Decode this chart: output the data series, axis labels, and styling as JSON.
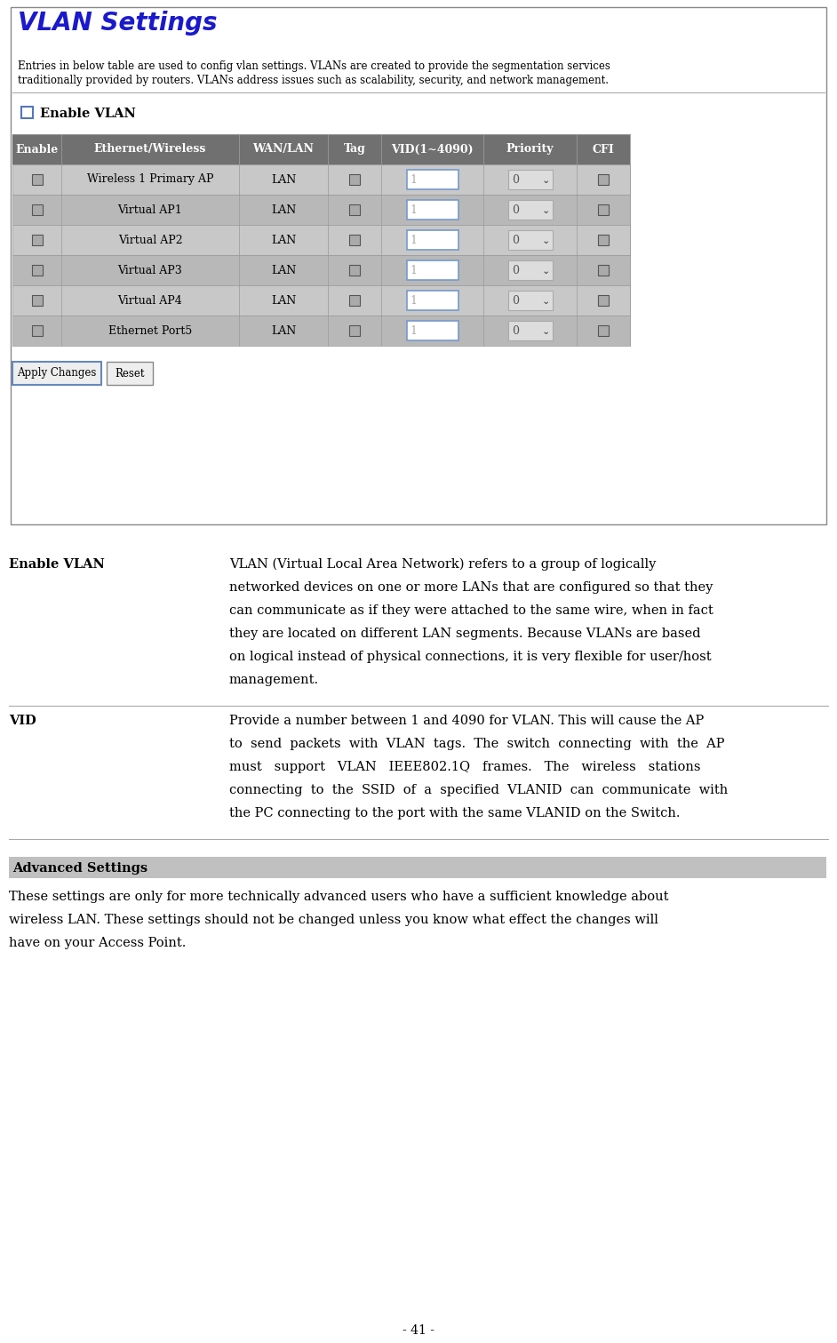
{
  "title": "VLAN Settings",
  "title_color": "#1a1acc",
  "title_fontsize": 20,
  "intro_text": "Entries in below table are used to config vlan settings. VLANs are created to provide the segmentation services traditionally provided by routers. VLANs address issues such as scalability, security, and network management.",
  "enable_vlan_label": "Enable VLAN",
  "table_headers": [
    "Enable",
    "Ethernet/Wireless",
    "WAN/LAN",
    "Tag",
    "VID(1~4090)",
    "Priority",
    "CFI"
  ],
  "table_rows": [
    [
      "",
      "Wireless 1 Primary AP",
      "LAN",
      "",
      "1",
      "0",
      ""
    ],
    [
      "",
      "Virtual AP1",
      "LAN",
      "",
      "1",
      "0",
      ""
    ],
    [
      "",
      "Virtual AP2",
      "LAN",
      "",
      "1",
      "0",
      ""
    ],
    [
      "",
      "Virtual AP3",
      "LAN",
      "",
      "1",
      "0",
      ""
    ],
    [
      "",
      "Virtual AP4",
      "LAN",
      "",
      "1",
      "0",
      ""
    ],
    [
      "",
      "Ethernet Port5",
      "LAN",
      "",
      "1",
      "0",
      ""
    ]
  ],
  "header_bg": "#707070",
  "row_bg_light": "#c8c8c8",
  "row_bg_dark": "#b8b8b8",
  "button1": "Apply Changes",
  "button2": "Reset",
  "term1": "Enable VLAN",
  "def1_lines": [
    "VLAN (Virtual Local Area Network) refers to a group of logically",
    "networked devices on one or more LANs that are configured so that they",
    "can communicate as if they were attached to the same wire, when in fact",
    "they are located on different LAN segments. Because VLANs are based",
    "on logical instead of physical connections, it is very flexible for user/host",
    "management."
  ],
  "term2": "VID",
  "def2_lines": [
    "Provide a number between 1 and 4090 for VLAN. This will cause the AP",
    "to  send  packets  with  VLAN  tags.  The  switch  connecting  with  the  AP",
    "must   support   VLAN   IEEE802.1Q   frames.   The   wireless   stations",
    "connecting  to  the  SSID  of  a  specified  VLANID  can  communicate  with",
    "the PC connecting to the port with the same VLANID on the Switch."
  ],
  "advanced_settings_title": "Advanced Settings",
  "advanced_settings_bg": "#c0c0c0",
  "adv_lines": [
    "These settings are only for more technically advanced users who have a sufficient knowledge about",
    "wireless LAN. These settings should not be changed unless you know what effect the changes will",
    "have on your Access Point."
  ],
  "page_number": "- 41 -",
  "bg_color": "#ffffff",
  "box_border": "#888888",
  "separator_color": "#aaaaaa"
}
